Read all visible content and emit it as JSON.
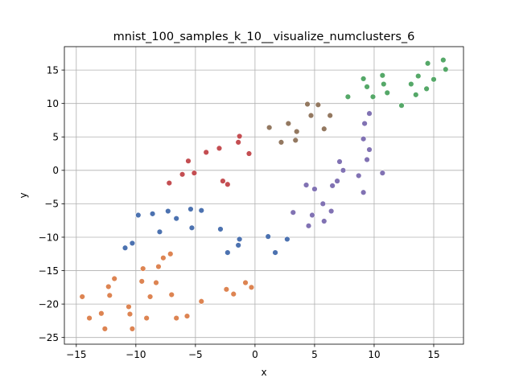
{
  "chart_data": {
    "type": "scatter",
    "title": "mnist_100_samples_k_10__visualize_numclusters_6",
    "xlabel": "x",
    "ylabel": "y",
    "xlim": [
      -16,
      17.5
    ],
    "ylim": [
      -26,
      18.5
    ],
    "xticks": [
      -15,
      -10,
      -5,
      0,
      5,
      10,
      15
    ],
    "yticks": [
      -25,
      -20,
      -15,
      -10,
      -5,
      0,
      5,
      10,
      15
    ],
    "grid": true,
    "legend": "none",
    "colors": [
      "#4c72b0",
      "#dd8452",
      "#55a868",
      "#c44e52",
      "#8172b3",
      "#937860"
    ],
    "series": [
      {
        "color": "#4c72b0",
        "points": [
          [
            -9.8,
            -6.7
          ],
          [
            -8.6,
            -6.5
          ],
          [
            -7.3,
            -6.1
          ],
          [
            -4.5,
            -6.0
          ],
          [
            -5.4,
            -5.8
          ],
          [
            -6.6,
            -7.2
          ],
          [
            -8.0,
            -9.2
          ],
          [
            -5.3,
            -8.6
          ],
          [
            -10.3,
            -10.9
          ],
          [
            -10.9,
            -11.6
          ],
          [
            -2.9,
            -8.8
          ],
          [
            -2.3,
            -12.3
          ],
          [
            -1.3,
            -10.3
          ],
          [
            -1.4,
            -11.2
          ],
          [
            1.1,
            -9.9
          ],
          [
            1.7,
            -12.3
          ],
          [
            2.7,
            -10.3
          ]
        ]
      },
      {
        "color": "#dd8452",
        "points": [
          [
            -7.1,
            -12.5
          ],
          [
            -7.7,
            -13.1
          ],
          [
            -8.1,
            -14.4
          ],
          [
            -9.4,
            -14.7
          ],
          [
            -9.5,
            -16.6
          ],
          [
            -8.3,
            -16.8
          ],
          [
            -11.8,
            -16.2
          ],
          [
            -12.3,
            -17.4
          ],
          [
            -12.2,
            -18.7
          ],
          [
            -14.5,
            -18.9
          ],
          [
            -13.9,
            -22.1
          ],
          [
            -12.9,
            -21.4
          ],
          [
            -12.6,
            -23.7
          ],
          [
            -10.6,
            -20.4
          ],
          [
            -10.5,
            -21.5
          ],
          [
            -10.3,
            -23.7
          ],
          [
            -9.1,
            -22.1
          ],
          [
            -8.8,
            -18.9
          ],
          [
            -7.0,
            -18.6
          ],
          [
            -6.6,
            -22.1
          ],
          [
            -5.7,
            -21.8
          ],
          [
            -4.5,
            -19.6
          ],
          [
            -2.4,
            -17.8
          ],
          [
            -1.8,
            -18.5
          ],
          [
            -0.8,
            -16.8
          ],
          [
            -0.3,
            -17.5
          ]
        ]
      },
      {
        "color": "#55a868",
        "points": [
          [
            15.8,
            16.5
          ],
          [
            14.5,
            16.0
          ],
          [
            16.0,
            15.1
          ],
          [
            10.7,
            14.2
          ],
          [
            13.7,
            14.1
          ],
          [
            9.1,
            13.7
          ],
          [
            15.0,
            13.6
          ],
          [
            10.8,
            12.9
          ],
          [
            13.1,
            12.9
          ],
          [
            9.4,
            12.5
          ],
          [
            14.4,
            12.2
          ],
          [
            11.1,
            11.6
          ],
          [
            13.5,
            11.3
          ],
          [
            7.8,
            11.0
          ],
          [
            9.9,
            11.0
          ],
          [
            12.3,
            9.7
          ]
        ]
      },
      {
        "color": "#c44e52",
        "points": [
          [
            -1.3,
            5.1
          ],
          [
            -1.4,
            4.2
          ],
          [
            -3.0,
            3.3
          ],
          [
            -4.1,
            2.7
          ],
          [
            -0.5,
            2.5
          ],
          [
            -5.6,
            1.4
          ],
          [
            -6.1,
            -0.6
          ],
          [
            -5.1,
            -0.4
          ],
          [
            -7.2,
            -1.9
          ],
          [
            -2.7,
            -1.6
          ],
          [
            -2.3,
            -2.1
          ]
        ]
      },
      {
        "color": "#8172b3",
        "points": [
          [
            9.6,
            8.5
          ],
          [
            9.2,
            7.0
          ],
          [
            9.1,
            4.7
          ],
          [
            9.6,
            3.1
          ],
          [
            9.4,
            1.6
          ],
          [
            7.1,
            1.3
          ],
          [
            7.4,
            0.0
          ],
          [
            8.7,
            -0.8
          ],
          [
            10.7,
            -0.4
          ],
          [
            6.9,
            -1.6
          ],
          [
            6.5,
            -2.3
          ],
          [
            4.3,
            -2.2
          ],
          [
            5.0,
            -2.8
          ],
          [
            9.1,
            -3.3
          ],
          [
            5.7,
            -5.0
          ],
          [
            6.4,
            -6.1
          ],
          [
            3.2,
            -6.3
          ],
          [
            4.8,
            -6.7
          ],
          [
            5.8,
            -7.6
          ],
          [
            4.5,
            -8.3
          ]
        ]
      },
      {
        "color": "#937860",
        "points": [
          [
            4.4,
            9.9
          ],
          [
            5.3,
            9.8
          ],
          [
            4.7,
            8.2
          ],
          [
            6.3,
            8.2
          ],
          [
            2.8,
            7.0
          ],
          [
            1.2,
            6.4
          ],
          [
            5.8,
            6.2
          ],
          [
            3.5,
            5.8
          ],
          [
            2.2,
            4.2
          ],
          [
            3.4,
            4.5
          ]
        ]
      }
    ]
  }
}
